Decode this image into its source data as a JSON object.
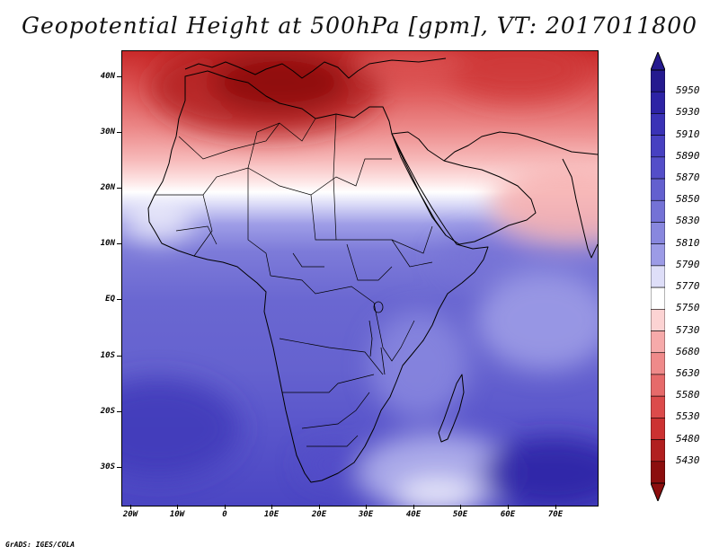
{
  "title": "Geopotential Height at 500hPa [gpm], VT: 2017011800",
  "footer": "GrADS: IGES/COLA",
  "map": {
    "lat_labels": [
      "40N",
      "30N",
      "20N",
      "10N",
      "EQ",
      "10S",
      "20S",
      "30S"
    ],
    "lon_labels": [
      "20W",
      "10W",
      "0",
      "10E",
      "20E",
      "30E",
      "40E",
      "50E",
      "60E",
      "70E"
    ],
    "extent": {
      "lon_min": -20,
      "lon_max": 80,
      "lat_min": -37,
      "lat_max": 45
    },
    "field_range_gpm": [
      5430,
      5950
    ],
    "features": [
      "Africa continent outline",
      "Madagascar",
      "Arabian Peninsula",
      "Mediterranean coastline",
      "country borders"
    ]
  },
  "colorbar": {
    "labels": [
      "5950",
      "5930",
      "5910",
      "5890",
      "5870",
      "5850",
      "5830",
      "5810",
      "5790",
      "5770",
      "5750",
      "5730",
      "5680",
      "5630",
      "5580",
      "5530",
      "5480",
      "5430"
    ],
    "colors": [
      "#251a8f",
      "#2d23a5",
      "#3a32b6",
      "#4740c1",
      "#544ec9",
      "#6360cf",
      "#7472d6",
      "#8887de",
      "#9c9be6",
      "#dedef8",
      "#ffffff",
      "#fcd3d3",
      "#f6aaaa",
      "#ef8a8a",
      "#e66a6a",
      "#dc4b4b",
      "#cc3232",
      "#b11f1f",
      "#8c0e0e"
    ]
  }
}
